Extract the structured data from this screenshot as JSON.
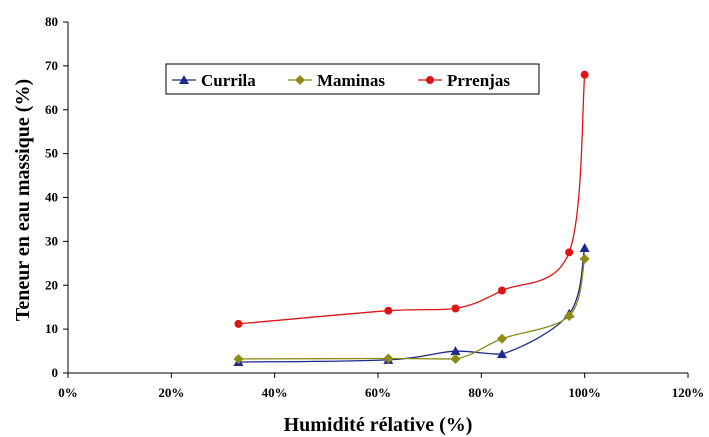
{
  "chart_data": {
    "type": "line",
    "xlabel": "Humidité rélative (%)",
    "ylabel": "Teneur en eau massique (%)",
    "xlim": [
      0,
      120
    ],
    "ylim": [
      0,
      80
    ],
    "x_ticks": [
      0,
      20,
      40,
      60,
      80,
      100,
      120
    ],
    "x_tick_labels": [
      "0%",
      "20%",
      "40%",
      "60%",
      "80%",
      "100%",
      "120%"
    ],
    "y_ticks": [
      0,
      10,
      20,
      30,
      40,
      50,
      60,
      70,
      80
    ],
    "y_tick_labels": [
      "0",
      "10",
      "20",
      "30",
      "40",
      "50",
      "60",
      "70",
      "80"
    ],
    "grid": false,
    "legend_position": "top-center",
    "series": [
      {
        "name": "Currila",
        "marker": "triangle",
        "color": "#1c2a8c",
        "points": [
          [
            33,
            2.5
          ],
          [
            62,
            3.0
          ],
          [
            75,
            5.0
          ],
          [
            84,
            4.3
          ],
          [
            97,
            13.5
          ],
          [
            100,
            28.5
          ]
        ]
      },
      {
        "name": "Maminas",
        "marker": "diamond",
        "color": "#8c8c14",
        "points": [
          [
            33,
            3.2
          ],
          [
            62,
            3.3
          ],
          [
            75,
            3.2
          ],
          [
            84,
            7.8
          ],
          [
            97,
            13.0
          ],
          [
            100,
            26.0
          ]
        ]
      },
      {
        "name": "Prrenjas",
        "marker": "circle",
        "color": "#e01414",
        "points": [
          [
            33,
            11.2
          ],
          [
            62,
            14.2
          ],
          [
            75,
            14.7
          ],
          [
            84,
            18.8
          ],
          [
            97,
            27.5
          ],
          [
            100,
            68.0
          ]
        ]
      }
    ]
  }
}
